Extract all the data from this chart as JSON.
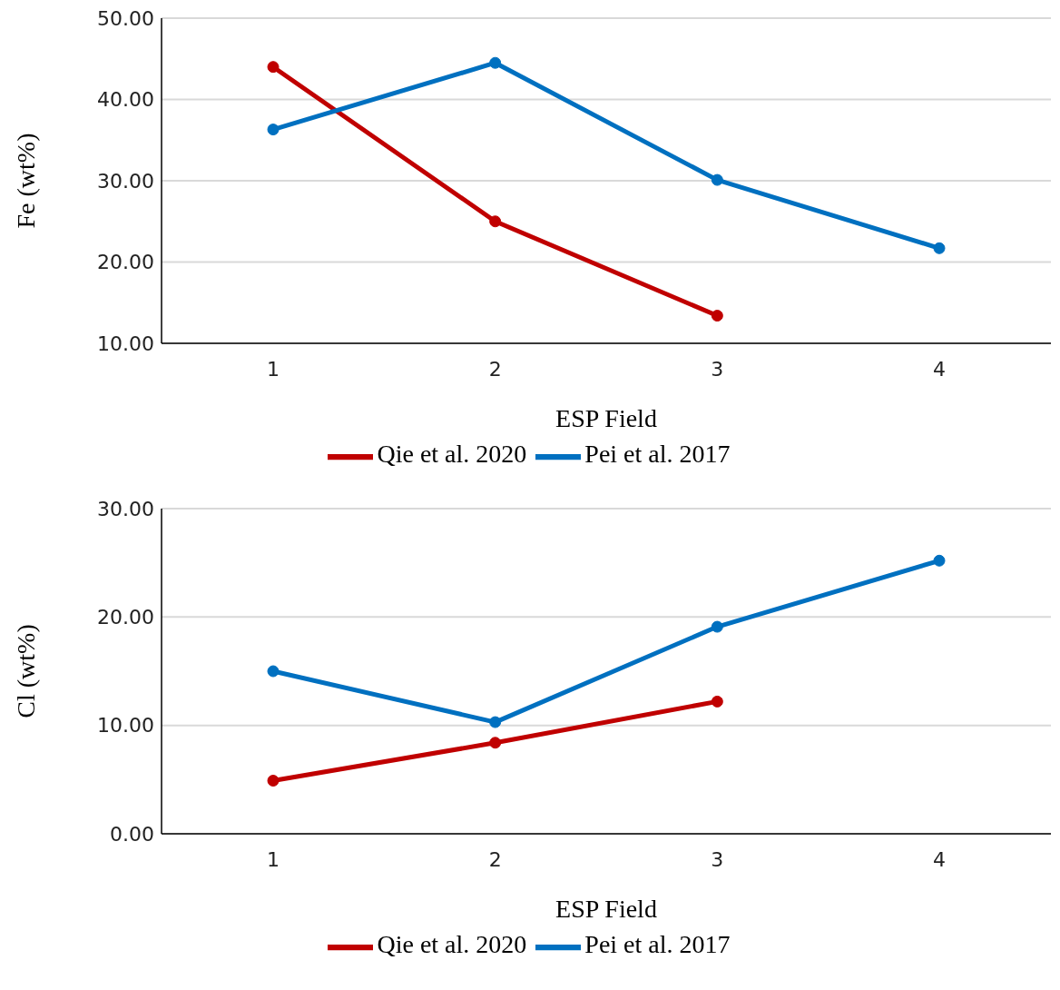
{
  "chart_data": [
    {
      "type": "line",
      "categories": [
        "1",
        "2",
        "3",
        "4"
      ],
      "xlabel": "ESP Field",
      "ylabel": "Fe (wt%)",
      "ylim": [
        10,
        50
      ],
      "yticks": [
        {
          "value": 10,
          "label": "10.00"
        },
        {
          "value": 20,
          "label": "20.00"
        },
        {
          "value": 30,
          "label": "30.00"
        },
        {
          "value": 40,
          "label": "40.00"
        },
        {
          "value": 50,
          "label": "50.00"
        }
      ],
      "grid": "y",
      "legend": "bottom",
      "marker": "circle",
      "series": [
        {
          "name": "Qie et al. 2020",
          "color": "#c00000",
          "values": [
            44.0,
            25.0,
            13.4,
            null
          ]
        },
        {
          "name": "Pei et al. 2017",
          "color": "#0070c0",
          "values": [
            36.3,
            44.5,
            30.1,
            21.7
          ]
        }
      ]
    },
    {
      "type": "line",
      "categories": [
        "1",
        "2",
        "3",
        "4"
      ],
      "xlabel": "ESP Field",
      "ylabel": "Cl (wt%)",
      "ylim": [
        0,
        30
      ],
      "yticks": [
        {
          "value": 0,
          "label": "0.00"
        },
        {
          "value": 10,
          "label": "10.00"
        },
        {
          "value": 20,
          "label": "20.00"
        },
        {
          "value": 30,
          "label": "30.00"
        }
      ],
      "grid": "y",
      "legend": "bottom",
      "marker": "circle",
      "series": [
        {
          "name": "Qie et al. 2020",
          "color": "#c00000",
          "values": [
            4.9,
            8.4,
            12.2,
            null
          ]
        },
        {
          "name": "Pei et al. 2017",
          "color": "#0070c0",
          "values": [
            15.0,
            10.3,
            19.1,
            25.2
          ]
        }
      ]
    }
  ]
}
